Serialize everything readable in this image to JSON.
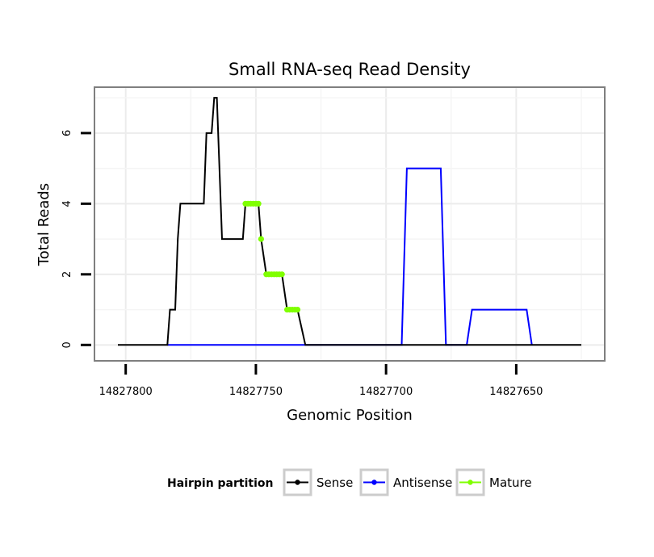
{
  "chart_data": {
    "type": "line",
    "title": "Small RNA-seq Read Density",
    "xlabel": "Genomic Position",
    "ylabel": "Total Reads",
    "x_reversed": true,
    "xlim": [
      14827812,
      14827616
    ],
    "ylim": [
      -0.45,
      7.3
    ],
    "x_ticks": [
      14827800,
      14827750,
      14827700,
      14827650
    ],
    "x_tick_labels": [
      "14827800",
      "14827750",
      "14827700",
      "14827650"
    ],
    "y_ticks": [
      0,
      2,
      4,
      6
    ],
    "y_tick_labels": [
      "0",
      "2",
      "4",
      "6"
    ],
    "grid": true,
    "legend": {
      "title": "Hairpin partition",
      "position": "bottom",
      "entries": [
        {
          "label": "Sense",
          "color": "#000000"
        },
        {
          "label": "Antisense",
          "color": "#0000ff"
        },
        {
          "label": "Mature",
          "color": "#7fff00"
        }
      ]
    },
    "series": [
      {
        "name": "Sense",
        "color": "#000000",
        "x": [
          14827803,
          14827784,
          14827783,
          14827781,
          14827780,
          14827779,
          14827770,
          14827769,
          14827767,
          14827766,
          14827765,
          14827763,
          14827755,
          14827754,
          14827752,
          14827749,
          14827748,
          14827746,
          14827743,
          14827741,
          14827740,
          14827738,
          14827737,
          14827735,
          14827734,
          14827731,
          14827725,
          14827625
        ],
        "y": [
          0,
          0,
          1,
          1,
          3,
          4,
          4,
          6,
          6,
          7,
          7,
          3,
          3,
          4,
          4,
          4,
          3,
          2,
          2,
          2,
          2,
          1,
          1,
          1,
          1,
          0,
          0,
          0
        ]
      },
      {
        "name": "Antisense",
        "color": "#0000ff",
        "x": [
          14827784,
          14827694,
          14827692,
          14827679,
          14827677,
          14827669,
          14827667,
          14827646,
          14827644
        ],
        "y": [
          0,
          0,
          5,
          5,
          0,
          0,
          1,
          1,
          0
        ]
      },
      {
        "name": "Mature",
        "color": "#7fff00",
        "x": [
          14827754,
          14827753,
          14827752,
          14827751,
          14827750,
          14827749,
          14827748,
          14827746,
          14827745,
          14827744,
          14827743,
          14827742,
          14827741,
          14827740,
          14827738,
          14827737,
          14827736,
          14827735,
          14827734
        ],
        "y": [
          4,
          4,
          4,
          4,
          4,
          4,
          3,
          2,
          2,
          2,
          2,
          2,
          2,
          2,
          1,
          1,
          1,
          1,
          1
        ]
      }
    ]
  }
}
